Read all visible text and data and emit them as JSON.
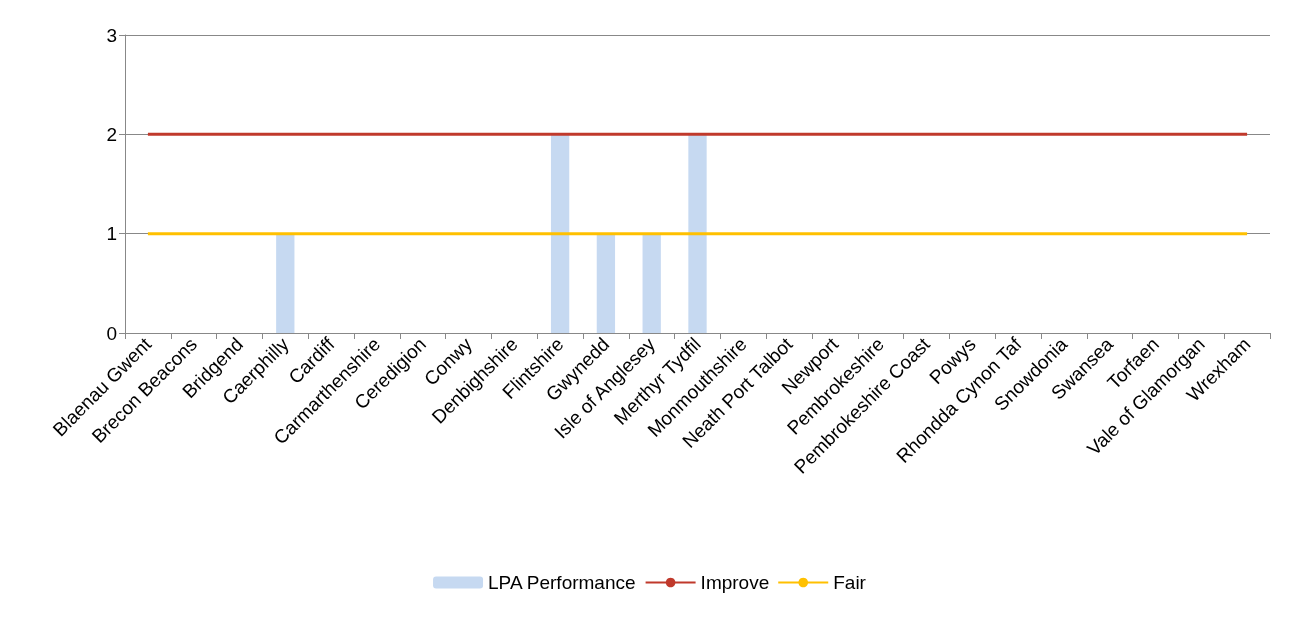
{
  "chart_data": {
    "type": "bar",
    "categories": [
      "Blaenau Gwent",
      "Brecon Beacons",
      "Bridgend",
      "Caerphilly",
      "Cardiff",
      "Carmarthenshire",
      "Ceredigion",
      "Conwy",
      "Denbighshire",
      "Flintshire",
      "Gwynedd",
      "Isle of Anglesey",
      "Merthyr Tydfil",
      "Monmouthshire",
      "Neath Port Talbot",
      "Newport",
      "Pembrokeshire",
      "Pembrokeshire Coast",
      "Powys",
      "Rhondda Cynon Taf",
      "Snowdonia",
      "Swansea",
      "Torfaen",
      "Vale of Glamorgan",
      "Wrexham"
    ],
    "series": [
      {
        "name": "LPA Performance",
        "color": "#c6d9f1",
        "values": [
          0,
          0,
          0,
          1,
          0,
          0,
          0,
          0,
          0,
          2,
          1,
          1,
          2,
          0,
          0,
          0,
          0,
          0,
          0,
          0,
          0,
          0,
          0,
          0,
          0
        ]
      },
      {
        "name": "Improve",
        "type": "line",
        "color": "#c0392b",
        "values": [
          2,
          2,
          2,
          2,
          2,
          2,
          2,
          2,
          2,
          2,
          2,
          2,
          2,
          2,
          2,
          2,
          2,
          2,
          2,
          2,
          2,
          2,
          2,
          2,
          2
        ]
      },
      {
        "name": "Fair",
        "type": "line",
        "color": "#ffc000",
        "values": [
          1,
          1,
          1,
          1,
          1,
          1,
          1,
          1,
          1,
          1,
          1,
          1,
          1,
          1,
          1,
          1,
          1,
          1,
          1,
          1,
          1,
          1,
          1,
          1,
          1
        ]
      }
    ],
    "ylim": [
      0,
      3
    ],
    "yticks": [
      0,
      1,
      2,
      3
    ],
    "grid": "y",
    "legend": "bottom",
    "marker": "none"
  }
}
